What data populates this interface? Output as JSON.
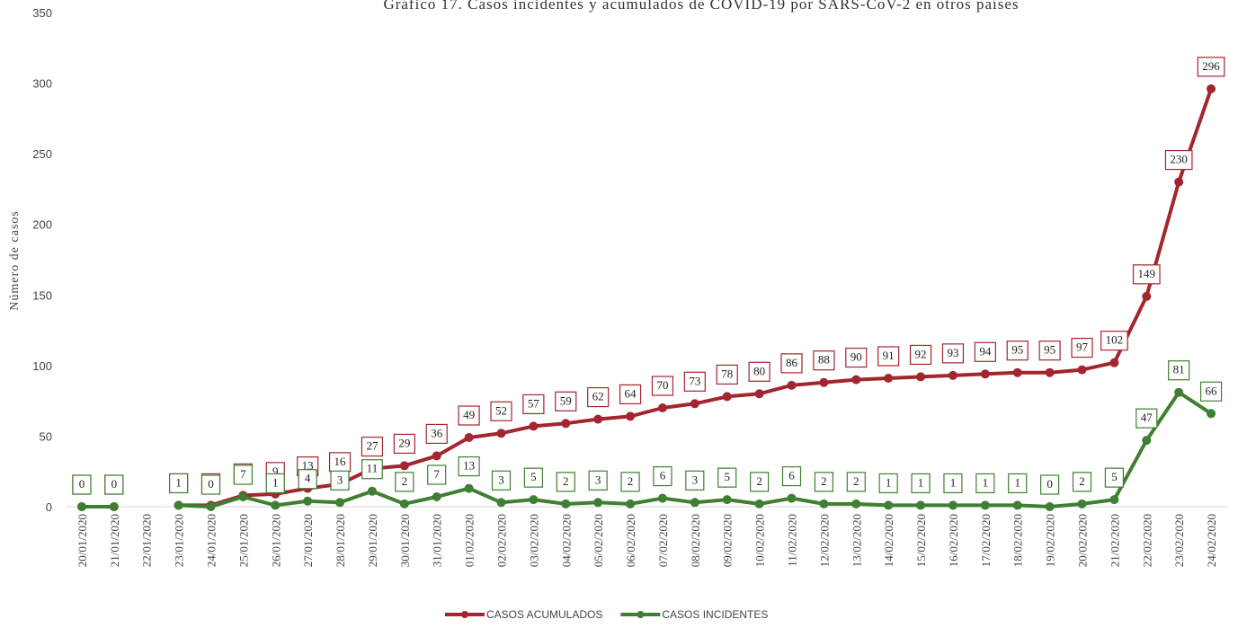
{
  "chart_data": {
    "type": "line",
    "title": "Gráfico 17. Casos incidentes y acumulados de COVID-19 por SARS-CoV-2 en otros países",
    "ylabel": "Número de casos",
    "categories": [
      "20/01/2020",
      "21/01/2020",
      "22/01/2020",
      "23/01/2020",
      "24/01/2020",
      "25/01/2020",
      "26/01/2020",
      "27/01/2020",
      "28/01/2020",
      "29/01/2020",
      "30/01/2020",
      "31/01/2020",
      "01/02/2020",
      "02/02/2020",
      "03/02/2020",
      "04/02/2020",
      "05/02/2020",
      "06/02/2020",
      "07/02/2020",
      "08/02/2020",
      "09/02/2020",
      "10/02/2020",
      "11/02/2020",
      "12/02/2020",
      "13/02/2020",
      "14/02/2020",
      "15/02/2020",
      "16/02/2020",
      "17/02/2020",
      "18/02/2020",
      "19/02/2020",
      "20/02/2020",
      "21/02/2020",
      "22/02/2020",
      "23/02/2020",
      "24/02/2020"
    ],
    "series": [
      {
        "name": "CASOS ACUMULADOS",
        "color": "#a3262e",
        "values": [
          0,
          0,
          null,
          1,
          1,
          8,
          9,
          13,
          16,
          27,
          29,
          36,
          49,
          52,
          57,
          59,
          62,
          64,
          70,
          73,
          78,
          80,
          86,
          88,
          90,
          91,
          92,
          93,
          94,
          95,
          95,
          97,
          102,
          149,
          230,
          296
        ]
      },
      {
        "name": "CASOS INCIDENTES",
        "color": "#3f7f32",
        "values": [
          0,
          0,
          null,
          1,
          0,
          7,
          1,
          4,
          3,
          11,
          2,
          7,
          13,
          3,
          5,
          2,
          3,
          2,
          6,
          3,
          5,
          2,
          6,
          2,
          2,
          1,
          1,
          1,
          1,
          1,
          0,
          2,
          5,
          47,
          81,
          66
        ]
      }
    ],
    "ylim": [
      0,
      350
    ],
    "yticks": [
      0,
      50,
      100,
      150,
      200,
      250,
      300,
      350
    ],
    "legend": "bottom"
  }
}
